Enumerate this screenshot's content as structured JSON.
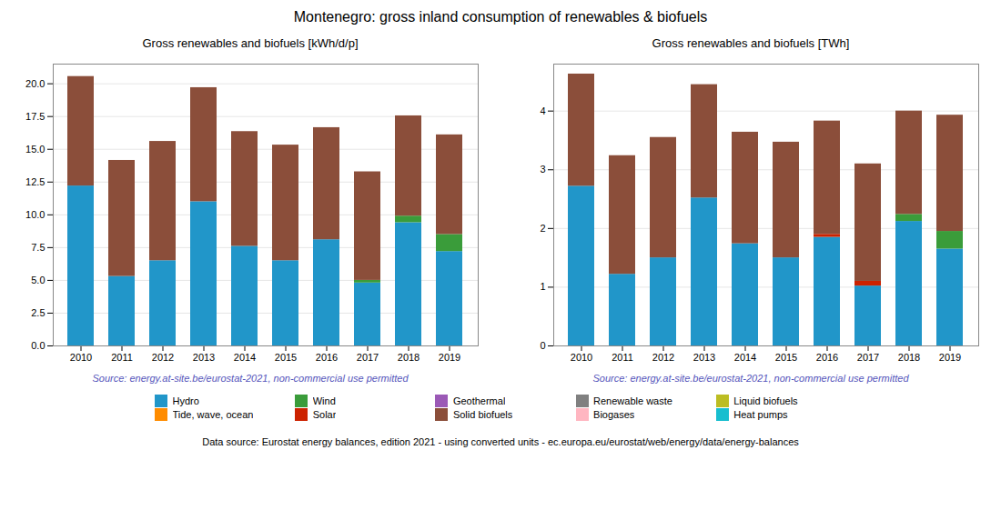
{
  "title": "Montenegro: gross inland consumption of renewables & biofuels",
  "annotations": [
    "Data source: Eurostat energy balances, edition 2021 - using converted units - ec.europa.eu/eurostat/web/energy/data/energy-balances"
  ],
  "chart_data": [
    {
      "type": "bar",
      "stacked": true,
      "grid": true,
      "legend": "bottom",
      "title": "Gross renewables and biofuels [kWh/d/p]",
      "annotations": [
        "Source: energy.at-site.be/eurostat-2021, non-commercial use permitted"
      ],
      "categories": [
        "2010",
        "2011",
        "2012",
        "2013",
        "2014",
        "2015",
        "2016",
        "2017",
        "2018",
        "2019"
      ],
      "series": [
        {
          "name": "Hydro",
          "color": "#2196c9",
          "values": [
            12.2,
            5.3,
            6.5,
            11.0,
            7.6,
            6.5,
            8.1,
            4.8,
            9.4,
            7.2
          ]
        },
        {
          "name": "Tide, wave, ocean",
          "color": "#ff8c00",
          "values": [
            0.0,
            0.0,
            0.0,
            0.0,
            0.0,
            0.0,
            0.0,
            0.0,
            0.0,
            0.0
          ]
        },
        {
          "name": "Wind",
          "color": "#3a9c3a",
          "values": [
            0.0,
            0.0,
            0.0,
            0.0,
            0.0,
            0.0,
            0.0,
            0.2,
            0.5,
            1.3
          ]
        },
        {
          "name": "Solar",
          "color": "#cc2200",
          "values": [
            0.0,
            0.0,
            0.0,
            0.0,
            0.0,
            0.0,
            0.0,
            0.0,
            0.0,
            0.0
          ]
        },
        {
          "name": "Geothermal",
          "color": "#9b59b6",
          "values": [
            0.0,
            0.0,
            0.0,
            0.0,
            0.0,
            0.0,
            0.0,
            0.0,
            0.0,
            0.0
          ]
        },
        {
          "name": "Solid biofuels",
          "color": "#8b4e3a",
          "values": [
            8.35,
            8.85,
            9.1,
            8.7,
            8.75,
            8.82,
            8.55,
            8.28,
            7.65,
            7.6
          ]
        },
        {
          "name": "Renewable waste",
          "color": "#808080",
          "values": [
            0.0,
            0.0,
            0.0,
            0.0,
            0.0,
            0.0,
            0.0,
            0.0,
            0.0,
            0.0
          ]
        },
        {
          "name": "Biogases",
          "color": "#ffb6c1",
          "values": [
            0.0,
            0.0,
            0.0,
            0.0,
            0.0,
            0.0,
            0.0,
            0.0,
            0.0,
            0.0
          ]
        },
        {
          "name": "Liquid biofuels",
          "color": "#bcbd22",
          "values": [
            0.0,
            0.0,
            0.0,
            0.0,
            0.0,
            0.0,
            0.0,
            0.0,
            0.0,
            0.0
          ]
        },
        {
          "name": "Heat pumps",
          "color": "#17becf",
          "values": [
            0.0,
            0.0,
            0.0,
            0.0,
            0.0,
            0.0,
            0.0,
            0.0,
            0.0,
            0.0
          ]
        }
      ],
      "ylim": [
        0,
        21.5
      ],
      "yticks": [
        {
          "value": 0,
          "label": "0.0"
        },
        2.5,
        {
          "value": 5,
          "label": "5.0"
        },
        7.5,
        {
          "value": 10,
          "label": "10.0"
        },
        12.5,
        {
          "value": 15,
          "label": "15.0"
        },
        17.5,
        {
          "value": 20,
          "label": "20.0"
        }
      ]
    },
    {
      "type": "bar",
      "stacked": true,
      "grid": true,
      "legend": "bottom",
      "title": "Gross renewables and biofuels [TWh]",
      "annotations": [
        "Source: energy.at-site.be/eurostat-2021, non-commercial use permitted"
      ],
      "categories": [
        "2010",
        "2011",
        "2012",
        "2013",
        "2014",
        "2015",
        "2016",
        "2017",
        "2018",
        "2019"
      ],
      "series": [
        {
          "name": "Hydro",
          "color": "#2196c9",
          "values": [
            2.72,
            1.22,
            1.5,
            2.52,
            1.74,
            1.5,
            1.85,
            1.02,
            2.12,
            1.65
          ]
        },
        {
          "name": "Tide, wave, ocean",
          "color": "#ff8c00",
          "values": [
            0.0,
            0.0,
            0.0,
            0.0,
            0.0,
            0.0,
            0.0,
            0.0,
            0.0,
            0.0
          ]
        },
        {
          "name": "Wind",
          "color": "#3a9c3a",
          "values": [
            0.0,
            0.0,
            0.0,
            0.0,
            0.0,
            0.0,
            0.0,
            0.0,
            0.12,
            0.3
          ]
        },
        {
          "name": "Solar",
          "color": "#cc2200",
          "values": [
            0.0,
            0.0,
            0.0,
            0.0,
            0.0,
            0.0,
            0.05,
            0.08,
            0.0,
            0.0
          ]
        },
        {
          "name": "Geothermal",
          "color": "#9b59b6",
          "values": [
            0.0,
            0.0,
            0.0,
            0.0,
            0.0,
            0.0,
            0.0,
            0.0,
            0.0,
            0.0
          ]
        },
        {
          "name": "Solid biofuels",
          "color": "#8b4e3a",
          "values": [
            1.91,
            2.02,
            2.05,
            1.93,
            1.9,
            1.97,
            1.93,
            2.0,
            1.76,
            1.98
          ]
        },
        {
          "name": "Renewable waste",
          "color": "#808080",
          "values": [
            0.0,
            0.0,
            0.0,
            0.0,
            0.0,
            0.0,
            0.0,
            0.0,
            0.0,
            0.0
          ]
        },
        {
          "name": "Biogases",
          "color": "#ffb6c1",
          "values": [
            0.0,
            0.0,
            0.0,
            0.0,
            0.0,
            0.0,
            0.0,
            0.0,
            0.0,
            0.0
          ]
        },
        {
          "name": "Liquid biofuels",
          "color": "#bcbd22",
          "values": [
            0.0,
            0.0,
            0.0,
            0.0,
            0.0,
            0.0,
            0.0,
            0.0,
            0.0,
            0.0
          ]
        },
        {
          "name": "Heat pumps",
          "color": "#17becf",
          "values": [
            0.0,
            0.0,
            0.0,
            0.0,
            0.0,
            0.0,
            0.0,
            0.0,
            0.0,
            0.0
          ]
        }
      ],
      "ylim": [
        0,
        4.8
      ],
      "yticks": [
        0,
        1,
        2,
        3,
        4
      ]
    }
  ]
}
